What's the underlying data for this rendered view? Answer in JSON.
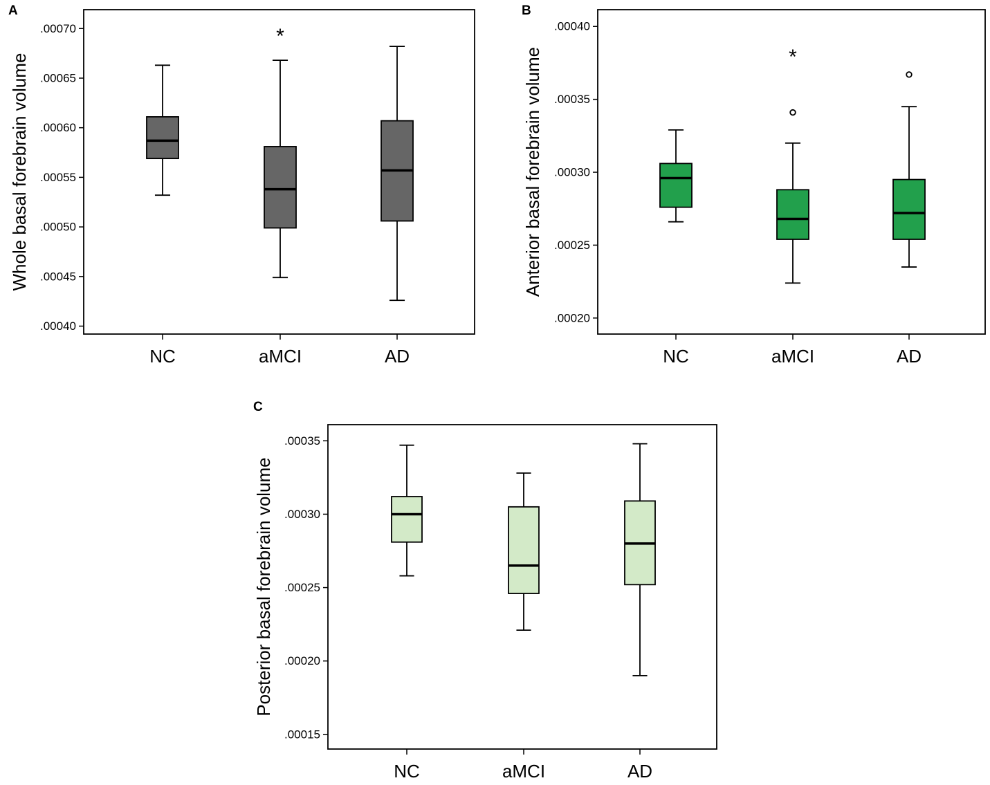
{
  "chart_data": [
    {
      "type": "box",
      "panel": "A",
      "ylabel": "Whole basal forebrain volume",
      "categories": [
        "NC",
        "aMCI",
        "AD"
      ],
      "ylim": [
        0.000392,
        0.000719
      ],
      "yticks": [
        0.0004,
        0.00045,
        0.0005,
        0.00055,
        0.0006,
        0.00065,
        0.0007
      ],
      "ytick_labels": [
        ".00040",
        ".00045",
        ".00050",
        ".00055",
        ".00060",
        ".00065",
        ".00070"
      ],
      "box_color": "#666666",
      "boxes": [
        {
          "category": "NC",
          "whisker_low": 0.000532,
          "q1": 0.000569,
          "median": 0.000587,
          "q3": 0.000611,
          "whisker_high": 0.000663,
          "outliers": []
        },
        {
          "category": "aMCI",
          "whisker_low": 0.000449,
          "q1": 0.000499,
          "median": 0.000538,
          "q3": 0.000581,
          "whisker_high": 0.000668,
          "outliers": []
        },
        {
          "category": "AD",
          "whisker_low": 0.000426,
          "q1": 0.000506,
          "median": 0.000557,
          "q3": 0.000607,
          "whisker_high": 0.000682,
          "outliers": []
        }
      ],
      "annotations": [
        {
          "category": "aMCI",
          "text": "*",
          "y": 0.000692
        }
      ]
    },
    {
      "type": "box",
      "panel": "B",
      "ylabel": "Anterior basal forebrain volume",
      "categories": [
        "NC",
        "aMCI",
        "AD"
      ],
      "ylim": [
        0.000189,
        0.0004115
      ],
      "yticks": [
        0.0002,
        0.00025,
        0.0003,
        0.00035,
        0.0004
      ],
      "ytick_labels": [
        ".00020",
        ".00025",
        ".00030",
        ".00035",
        ".00040"
      ],
      "box_color": "#22A04C",
      "boxes": [
        {
          "category": "NC",
          "whisker_low": 0.000266,
          "q1": 0.000276,
          "median": 0.000296,
          "q3": 0.000306,
          "whisker_high": 0.000329,
          "outliers": []
        },
        {
          "category": "aMCI",
          "whisker_low": 0.000224,
          "q1": 0.000254,
          "median": 0.000268,
          "q3": 0.000288,
          "whisker_high": 0.00032,
          "outliers": [
            0.000341
          ]
        },
        {
          "category": "AD",
          "whisker_low": 0.000235,
          "q1": 0.000254,
          "median": 0.000272,
          "q3": 0.000295,
          "whisker_high": 0.000345,
          "outliers": [
            0.000367
          ]
        }
      ],
      "annotations": [
        {
          "category": "aMCI",
          "text": "*",
          "y": 0.000379
        }
      ]
    },
    {
      "type": "box",
      "panel": "C",
      "ylabel": "Posterior basal forebrain volume",
      "categories": [
        "NC",
        "aMCI",
        "AD"
      ],
      "ylim": [
        0.00014,
        0.000361
      ],
      "yticks": [
        0.00015,
        0.0002,
        0.00025,
        0.0003,
        0.00035
      ],
      "ytick_labels": [
        ".00015",
        ".00020",
        ".00025",
        ".00030",
        ".00035"
      ],
      "box_color": "#D3EAC8",
      "boxes": [
        {
          "category": "NC",
          "whisker_low": 0.000258,
          "q1": 0.000281,
          "median": 0.0003,
          "q3": 0.000312,
          "whisker_high": 0.000347,
          "outliers": []
        },
        {
          "category": "aMCI",
          "whisker_low": 0.000221,
          "q1": 0.000246,
          "median": 0.000265,
          "q3": 0.000305,
          "whisker_high": 0.000328,
          "outliers": []
        },
        {
          "category": "AD",
          "whisker_low": 0.00019,
          "q1": 0.000252,
          "median": 0.00028,
          "q3": 0.000309,
          "whisker_high": 0.000348,
          "outliers": []
        }
      ],
      "annotations": []
    }
  ]
}
